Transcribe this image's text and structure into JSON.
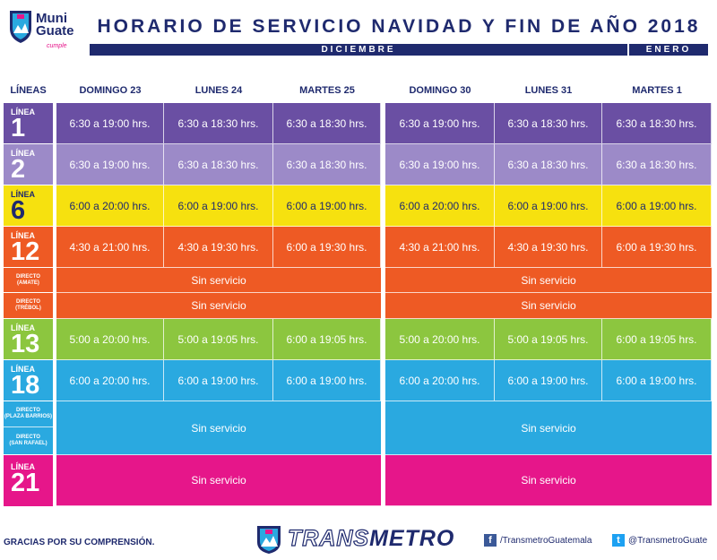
{
  "header": {
    "logo_text_1": "Muni",
    "logo_text_2": "Guate",
    "logo_tag": "cumple",
    "title": "HORARIO DE SERVICIO NAVIDAD Y FIN DE AÑO 2018",
    "month_dec": "DICIEMBRE",
    "month_jan": "ENERO"
  },
  "columns": {
    "lines_header": "LÍNEAS",
    "days": [
      "DOMINGO 23",
      "LUNES 24",
      "MARTES 25",
      "DOMINGO 30",
      "LUNES 31",
      "MARTES 1"
    ]
  },
  "rows": {
    "l1": {
      "label_small": "LÍNEA",
      "label_num": "1",
      "times": [
        "6:30 a 19:00 hrs.",
        "6:30 a 18:30 hrs.",
        "6:30 a 18:30 hrs.",
        "6:30 a 19:00 hrs.",
        "6:30 a 18:30 hrs.",
        "6:30 a 18:30 hrs."
      ]
    },
    "l2": {
      "label_small": "LÍNEA",
      "label_num": "2",
      "times": [
        "6:30 a 19:00 hrs.",
        "6:30 a 18:30 hrs.",
        "6:30 a 18:30 hrs.",
        "6:30 a 19:00 hrs.",
        "6:30 a 18:30 hrs.",
        "6:30 a 18:30 hrs."
      ]
    },
    "l6": {
      "label_small": "LÍNEA",
      "label_num": "6",
      "times": [
        "6:00 a 20:00 hrs.",
        "6:00 a 19:00 hrs.",
        "6:00 a 19:00 hrs.",
        "6:00 a 20:00 hrs.",
        "6:00 a 19:00 hrs.",
        "6:00 a 19:00 hrs."
      ]
    },
    "l12": {
      "label_small": "LÍNEA",
      "label_num": "12",
      "times": [
        "4:30 a 21:00 hrs.",
        "4:30 a 19:30 hrs.",
        "6:00 a 19:30 hrs.",
        "4:30 a 21:00 hrs.",
        "4:30 a 19:30 hrs.",
        "6:00 a 19:30 hrs."
      ]
    },
    "amate": {
      "label_1": "DIRECTO",
      "label_2": "(AMATE)",
      "dec": "Sin servicio",
      "jan": "Sin servicio"
    },
    "trebol": {
      "label_1": "DIRECTO",
      "label_2": "(TRÉBOL)",
      "dec": "Sin servicio",
      "jan": "Sin servicio"
    },
    "l13": {
      "label_small": "LÍNEA",
      "label_num": "13",
      "times": [
        "5:00 a 20:00 hrs.",
        "5:00 a 19:05 hrs.",
        "6:00 a 19:05 hrs.",
        "5:00 a 20:00 hrs.",
        "5:00 a 19:05 hrs.",
        "6:00 a 19:05 hrs."
      ]
    },
    "l18": {
      "label_small": "LÍNEA",
      "label_num": "18",
      "times": [
        "6:00 a 20:00 hrs.",
        "6:00 a 19:00 hrs.",
        "6:00 a 19:00 hrs.",
        "6:00 a 20:00 hrs.",
        "6:00 a 19:00 hrs.",
        "6:00 a 19:00 hrs."
      ]
    },
    "barrios": {
      "label_1": "DIRECTO",
      "label_2": "(PLAZA BARRIOS)"
    },
    "rafael": {
      "label_1": "DIRECTO",
      "label_2": "(SAN RAFAEL)"
    },
    "directos_dec": "Sin servicio",
    "directos_jan": "Sin servicio",
    "l21": {
      "label_small": "LÍNEA",
      "label_num": "21",
      "dec": "Sin servicio",
      "jan": "Sin servicio"
    }
  },
  "colors": {
    "navy": "#1f2a6e",
    "l1": "#6a4fa3",
    "l2": "#9c8ac8",
    "l6": "#f6e10f",
    "l12": "#ee5a24",
    "l13": "#8cc63f",
    "l18": "#2aa9e0",
    "l21": "#e6168a"
  },
  "footer": {
    "thanks": "GRACIAS POR SU COMPRENSIÓN.",
    "brand_1": "TRANS",
    "brand_2": "METRO",
    "facebook": "/TransmetroGuatemala",
    "twitter": "@TransmetroGuate"
  }
}
